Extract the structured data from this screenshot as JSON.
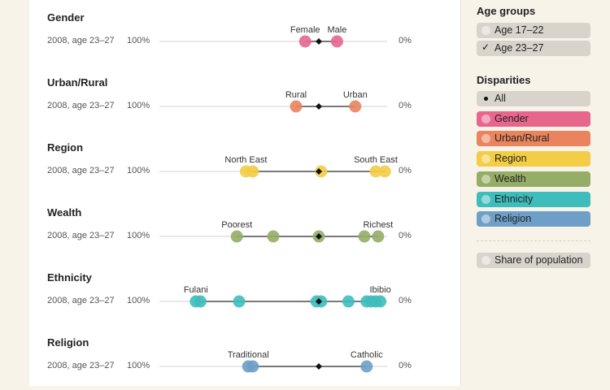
{
  "age_groups": {
    "heading": "Age groups",
    "options": [
      {
        "label": "Age 17–22",
        "selected": false
      },
      {
        "label": "Age 23–27",
        "selected": true
      }
    ]
  },
  "disparities": {
    "heading": "Disparities",
    "options": [
      {
        "label": "All",
        "color": "#d8d4cc",
        "selected": true
      },
      {
        "label": "Gender",
        "color": "#e7668c",
        "selected": false
      },
      {
        "label": "Urban/Rural",
        "color": "#e9845e",
        "selected": false
      },
      {
        "label": "Region",
        "color": "#f2cd45",
        "selected": false
      },
      {
        "label": "Wealth",
        "color": "#95ad66",
        "selected": false
      },
      {
        "label": "Ethnicity",
        "color": "#3fbcbc",
        "selected": false
      },
      {
        "label": "Religion",
        "color": "#6e9fc6",
        "selected": false
      }
    ],
    "share_label": "Share of population"
  },
  "chart_data": {
    "type": "scatter",
    "x_left_label": "100%",
    "x_right_label": "0%",
    "xlim": [
      100,
      0
    ],
    "rows": [
      {
        "title": "Gender",
        "subtitle": "2008, age 23–27",
        "color": "#e7668c",
        "mean": 30,
        "points": [
          36,
          22
        ],
        "labels": [
          {
            "text": "Female",
            "value": 36
          },
          {
            "text": "Male",
            "value": 22
          }
        ]
      },
      {
        "title": "Urban/Rural",
        "subtitle": "2008, age 23–27",
        "color": "#e9845e",
        "mean": 30,
        "points": [
          40,
          14
        ],
        "labels": [
          {
            "text": "Rural",
            "value": 40
          },
          {
            "text": "Urban",
            "value": 14
          }
        ]
      },
      {
        "title": "Region",
        "subtitle": "2008, age 23–27",
        "color": "#f2cd45",
        "mean": 30,
        "points": [
          62,
          59,
          29,
          5,
          1
        ],
        "labels": [
          {
            "text": "North East",
            "value": 62
          },
          {
            "text": "South East",
            "value": 5
          }
        ]
      },
      {
        "title": "Wealth",
        "subtitle": "2008, age 23–27",
        "color": "#95ad66",
        "mean": 30,
        "points": [
          66,
          50,
          30,
          10,
          4
        ],
        "labels": [
          {
            "text": "Poorest",
            "value": 66
          },
          {
            "text": "Richest",
            "value": 4
          }
        ]
      },
      {
        "title": "Ethnicity",
        "subtitle": "2008, age 23–27",
        "color": "#3fbcbc",
        "mean": 30,
        "points": [
          84,
          82,
          65,
          31,
          29,
          17,
          9,
          7,
          5,
          3
        ],
        "labels": [
          {
            "text": "Fulani",
            "value": 84
          },
          {
            "text": "Ibibio",
            "value": 3
          }
        ]
      },
      {
        "title": "Religion",
        "subtitle": "2008, age 23–27",
        "color": "#6e9fc6",
        "mean": 30,
        "points": [
          61,
          59,
          9
        ],
        "labels": [
          {
            "text": "Traditional",
            "value": 61
          },
          {
            "text": "Catholic",
            "value": 9
          }
        ]
      }
    ]
  }
}
